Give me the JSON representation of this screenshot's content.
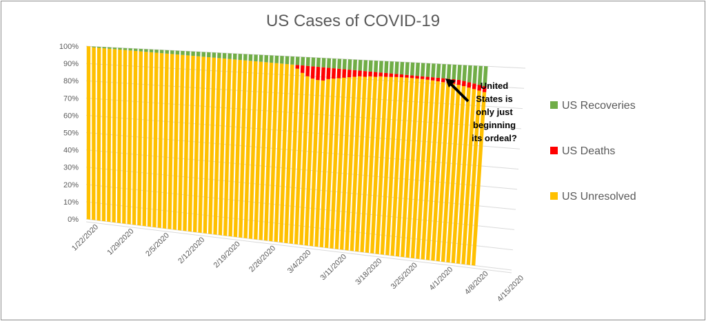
{
  "chart_data": {
    "type": "bar",
    "subtype": "stacked-100-percent-3d",
    "title": "US Cases of COVID-19",
    "xlabel": "",
    "ylabel": "",
    "ylim": [
      0,
      100
    ],
    "y_tick_labels": [
      "0%",
      "10%",
      "20%",
      "30%",
      "40%",
      "50%",
      "60%",
      "70%",
      "80%",
      "90%",
      "100%"
    ],
    "x_tick_labels": [
      "1/22/2020",
      "1/29/2020",
      "2/5/2020",
      "2/12/2020",
      "2/19/2020",
      "2/26/2020",
      "3/4/2020",
      "3/11/2020",
      "3/18/2020",
      "3/25/2020",
      "4/1/2020",
      "4/8/2020",
      "4/15/2020"
    ],
    "x_start": "1/22/2020",
    "x_end": "4/15/2020",
    "data_last": "4/7/2020",
    "legend_position": "right",
    "grid": true,
    "series": [
      {
        "name": "US Recoveries",
        "color": "#70AD47",
        "values": [
          0,
          0.5,
          0.6,
          0.7,
          0.8,
          0.9,
          1.0,
          1.1,
          1.2,
          1.3,
          1.4,
          1.5,
          1.6,
          1.7,
          1.8,
          1.9,
          2.0,
          2.1,
          2.2,
          2.3,
          2.4,
          2.5,
          2.6,
          2.7,
          2.8,
          2.9,
          3.0,
          3.1,
          3.2,
          3.3,
          3.4,
          3.5,
          3.6,
          3.7,
          3.8,
          3.9,
          4.0,
          4.1,
          4.2,
          4.3,
          4.4,
          4.5,
          4.6,
          4.7,
          4.8,
          4.9,
          5.0,
          5.1,
          5.2,
          5.3,
          5.4,
          5.5,
          5.6,
          5.7,
          5.8,
          5.9,
          6.0,
          6.1,
          6.2,
          6.3,
          6.4,
          6.5,
          6.6,
          6.7,
          6.8,
          6.9,
          7.0,
          7.1,
          7.2,
          7.3,
          7.4,
          7.6,
          8.0,
          8.5,
          9.0,
          9.5,
          10.0
        ]
      },
      {
        "name": "US Deaths",
        "color": "#FF0000",
        "values": [
          0,
          0,
          0,
          0,
          0,
          0,
          0,
          0,
          0,
          0,
          0,
          0,
          0,
          0,
          0,
          0,
          0,
          0,
          0,
          0,
          0,
          0,
          0,
          0,
          0,
          0,
          0,
          0,
          0,
          0,
          0,
          0,
          0,
          0,
          0,
          0,
          0,
          0,
          0,
          0,
          2.0,
          4.0,
          5.5,
          6.5,
          7.0,
          7.0,
          6.0,
          5.5,
          5.0,
          4.5,
          4.0,
          3.5,
          3.0,
          3.0,
          2.5,
          2.5,
          2.0,
          2.0,
          1.8,
          1.6,
          1.5,
          1.4,
          1.4,
          1.4,
          1.4,
          1.5,
          1.6,
          1.8,
          2.0,
          2.2,
          2.3,
          2.5,
          2.6,
          2.7,
          2.8,
          2.9,
          3.0
        ]
      },
      {
        "name": "US Unresolved",
        "color": "#FFC000",
        "values": [
          100,
          99.5,
          99.4,
          99.3,
          99.2,
          99.1,
          99.0,
          98.9,
          98.8,
          98.7,
          98.6,
          98.5,
          98.4,
          98.3,
          98.2,
          98.1,
          98.0,
          97.9,
          97.8,
          97.7,
          97.6,
          97.5,
          97.4,
          97.3,
          97.2,
          97.1,
          97.0,
          96.9,
          96.8,
          96.7,
          96.6,
          96.5,
          96.4,
          96.3,
          96.2,
          96.1,
          96.0,
          95.9,
          95.8,
          95.7,
          93.6,
          91.5,
          89.9,
          88.8,
          88.2,
          88.1,
          89.0,
          89.4,
          89.8,
          90.2,
          90.6,
          91.0,
          91.4,
          91.3,
          91.7,
          91.6,
          92.0,
          91.9,
          92.0,
          92.1,
          92.1,
          92.1,
          92.0,
          91.9,
          91.8,
          91.6,
          91.4,
          91.1,
          90.8,
          90.5,
          90.3,
          89.9,
          89.4,
          88.8,
          88.2,
          87.6,
          87.0
        ]
      }
    ],
    "annotation": {
      "lines": [
        "United",
        "States is",
        "only just",
        "beginning",
        "its ordeal?"
      ]
    }
  }
}
